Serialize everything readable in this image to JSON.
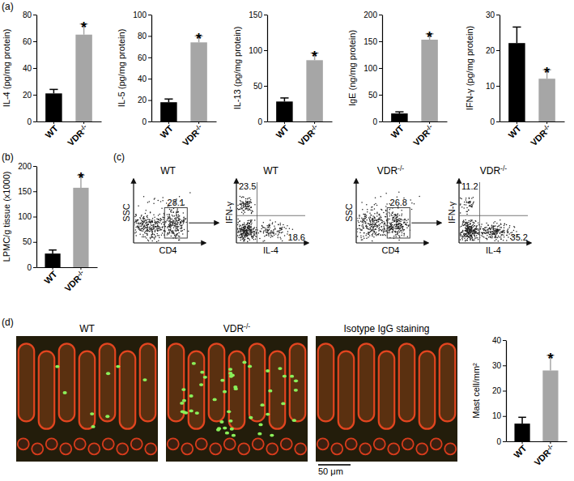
{
  "chart_data": [
    {
      "type": "bar",
      "y_label": "IL-4 (pg/mg protein)",
      "categories": [
        "WT",
        "VDR-/-"
      ],
      "values": [
        21,
        65
      ],
      "errors": [
        3,
        8
      ],
      "significance": [
        null,
        "*"
      ],
      "colors": [
        "#000000",
        "#a6a6a6"
      ],
      "ylim": [
        0,
        80
      ],
      "yticks": [
        0,
        20,
        40,
        60,
        80
      ]
    },
    {
      "type": "bar",
      "y_label": "IL-5 (pg/mg protein)",
      "categories": [
        "WT",
        "VDR-/-"
      ],
      "values": [
        18,
        74
      ],
      "errors": [
        3,
        6
      ],
      "significance": [
        null,
        "*"
      ],
      "colors": [
        "#000000",
        "#a6a6a6"
      ],
      "ylim": [
        0,
        100
      ],
      "yticks": [
        0,
        20,
        40,
        60,
        80,
        100
      ]
    },
    {
      "type": "bar",
      "y_label": "IL-13 (pg/mg protein)",
      "categories": [
        "WT",
        "VDR-/-"
      ],
      "values": [
        28,
        86
      ],
      "errors": [
        5,
        10
      ],
      "significance": [
        null,
        "*"
      ],
      "colors": [
        "#000000",
        "#a6a6a6"
      ],
      "ylim": [
        0,
        150
      ],
      "yticks": [
        0,
        50,
        100,
        150
      ]
    },
    {
      "type": "bar",
      "y_label": "IgE (ng/mg protein)",
      "categories": [
        "WT",
        "VDR-/-"
      ],
      "values": [
        15,
        153
      ],
      "errors": [
        3,
        11
      ],
      "significance": [
        null,
        "*"
      ],
      "colors": [
        "#000000",
        "#a6a6a6"
      ],
      "ylim": [
        0,
        200
      ],
      "yticks": [
        0,
        50,
        100,
        150,
        200
      ]
    },
    {
      "type": "bar",
      "y_label": "IFN-γ (pg/mg protein)",
      "categories": [
        "WT",
        "VDR-/-"
      ],
      "values": [
        22,
        12
      ],
      "errors": [
        4.5,
        2.5
      ],
      "significance": [
        null,
        "*"
      ],
      "colors": [
        "#000000",
        "#a6a6a6"
      ],
      "ylim": [
        0,
        30
      ],
      "yticks": [
        0,
        10,
        20,
        30
      ]
    },
    {
      "type": "bar",
      "y_label": "LPMC/g tissue (x1000)",
      "categories": [
        "WT",
        "VDR-/-"
      ],
      "values": [
        27,
        157
      ],
      "errors": [
        7,
        25
      ],
      "significance": [
        null,
        "*"
      ],
      "colors": [
        "#000000",
        "#a6a6a6"
      ],
      "ylim": [
        0,
        200
      ],
      "yticks": [
        0,
        50,
        100,
        150,
        200
      ]
    },
    {
      "type": "bar",
      "y_label": "Mast cell/mm²",
      "categories": [
        "WT",
        "VDR-/-"
      ],
      "values": [
        7,
        28
      ],
      "errors": [
        2.5,
        6
      ],
      "significance": [
        null,
        "*"
      ],
      "colors": [
        "#000000",
        "#a6a6a6"
      ],
      "ylim": [
        0,
        40
      ],
      "yticks": [
        0,
        10,
        20,
        30,
        40
      ]
    }
  ],
  "figure": {
    "panel_labels": [
      "(a)",
      "(b)",
      "(c)",
      "(d)"
    ],
    "flow": [
      {
        "kind": "gate",
        "title": "WT",
        "x_label": "CD4",
        "y_label": "SSC",
        "gate": 28.1
      },
      {
        "kind": "quadrant",
        "title": "WT",
        "x_label": "IL-4",
        "y_label": "IFN-γ",
        "upper_left": 23.5,
        "lower_right": 18.6
      },
      {
        "kind": "gate",
        "title": "VDR-/-",
        "x_label": "CD4",
        "y_label": "SSC",
        "gate": 26.8
      },
      {
        "kind": "quadrant",
        "title": "VDR-/-",
        "x_label": "IL-4",
        "y_label": "IFN-γ",
        "upper_left": 11.2,
        "lower_right": 35.2
      }
    ],
    "micrographs": [
      {
        "label": "WT"
      },
      {
        "label": "VDR-/-"
      },
      {
        "label": "Isotype IgG staining"
      }
    ],
    "scale_bar": "50 μm"
  }
}
